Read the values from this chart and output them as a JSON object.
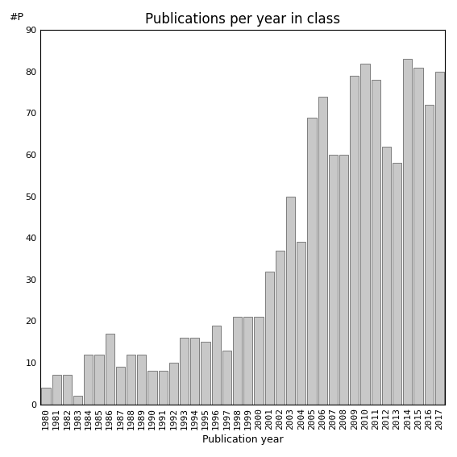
{
  "title": "Publications per year in class",
  "xlabel": "Publication year",
  "ylabel": "#P",
  "years": [
    "1980",
    "1981",
    "1982",
    "1983",
    "1984",
    "1985",
    "1986",
    "1987",
    "1988",
    "1989",
    "1990",
    "1991",
    "1992",
    "1993",
    "1994",
    "1995",
    "1996",
    "1997",
    "1998",
    "1999",
    "2000",
    "2001",
    "2002",
    "2003",
    "2004",
    "2005",
    "2006",
    "2007",
    "2008",
    "2009",
    "2010",
    "2011",
    "2012",
    "2013",
    "2014",
    "2015",
    "2016",
    "2017"
  ],
  "values": [
    4,
    7,
    7,
    2,
    12,
    12,
    17,
    9,
    12,
    12,
    8,
    8,
    10,
    16,
    16,
    15,
    19,
    13,
    21,
    21,
    21,
    32,
    37,
    50,
    39,
    69,
    74,
    60,
    60,
    79,
    82,
    78,
    62,
    58,
    83,
    81,
    72,
    80
  ],
  "bar_color": "#c8c8c8",
  "bar_edge_color": "#555555",
  "ylim": [
    0,
    90
  ],
  "yticks": [
    0,
    10,
    20,
    30,
    40,
    50,
    60,
    70,
    80,
    90
  ],
  "bg_color": "#ffffff",
  "title_fontsize": 12,
  "label_fontsize": 9,
  "tick_fontsize": 8
}
